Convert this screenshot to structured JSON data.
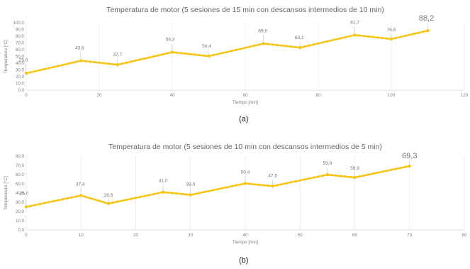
{
  "chart_data": [
    {
      "type": "line",
      "title": "Temperatura de motor (5 sesiones de 15 min con descansos intermedios de 10 min)",
      "xlabel": "Tiempo [min]",
      "ylabel": "Temperatura [°C]",
      "xlim": [
        0,
        120
      ],
      "ylim": [
        0,
        100
      ],
      "xticks": [
        "0",
        "20",
        "40",
        "60",
        "80",
        "100",
        "120"
      ],
      "yticks": [
        "0,0",
        "10,0",
        "20,0",
        "30,0",
        "40,0",
        "50,0",
        "60,0",
        "70,0",
        "80,0",
        "90,0",
        "100,0"
      ],
      "grid": "vertical",
      "color": "#f5c518",
      "caption": "(a)",
      "x": [
        0,
        15,
        25,
        40,
        50,
        65,
        75,
        90,
        100,
        110
      ],
      "y": [
        25.0,
        43.6,
        37.7,
        56.3,
        50.4,
        69.0,
        63.1,
        81.7,
        75.8,
        88.2
      ],
      "labels": [
        "25,0",
        "43,6",
        "37,7",
        "56,3",
        "50,4",
        "69,0",
        "63,1",
        "81,7",
        "75,8",
        "88,2"
      ]
    },
    {
      "type": "line",
      "title": "Temperatura de motor (5 sesiones de 10 min con descansos intermedios de 5 min)",
      "xlabel": "Tiempo [min]",
      "ylabel": "Temperatura [°C]",
      "xlim": [
        0,
        80
      ],
      "ylim": [
        0,
        80
      ],
      "xticks": [
        "0",
        "10",
        "20",
        "30",
        "40",
        "50",
        "60",
        "70",
        "80"
      ],
      "yticks": [
        "0,0",
        "10,0",
        "20,0",
        "30,0",
        "40,0",
        "50,0",
        "60,0",
        "70,0",
        "80,0"
      ],
      "grid": "vertical",
      "color": "#f5c518",
      "caption": "(b)",
      "x": [
        0,
        10,
        15,
        25,
        30,
        40,
        45,
        55,
        60,
        70
      ],
      "y": [
        25.0,
        37.4,
        28.6,
        41.0,
        38.0,
        50.4,
        47.5,
        59.9,
        56.9,
        69.3
      ],
      "labels": [
        "25,0",
        "37,4",
        "28,6",
        "41,0",
        "38,0",
        "50,4",
        "47,5",
        "59,9",
        "56,9",
        "69,3"
      ]
    }
  ]
}
